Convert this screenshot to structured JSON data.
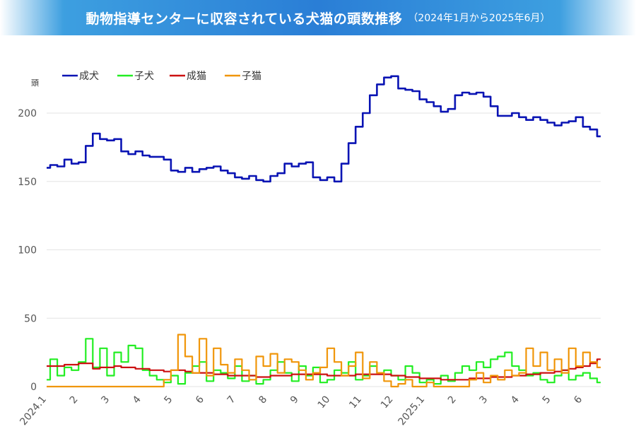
{
  "title": "動物指導センターに収容されている犬猫の頭数推移",
  "subtitle": "（2024年1月から2025年6月）",
  "chart_data": {
    "type": "line",
    "ylabel": "頭",
    "ylim": [
      0,
      230
    ],
    "yticks": [
      0,
      50,
      100,
      150,
      200
    ],
    "grid": true,
    "legend": "top-left",
    "months": [
      "2024.1",
      "2",
      "3",
      "4",
      "5",
      "6",
      "7",
      "8",
      "9",
      "10",
      "11",
      "12",
      "2025.1",
      "2",
      "3",
      "4",
      "5",
      "6"
    ],
    "series": [
      {
        "name": "成犬",
        "color": "#0a14b4",
        "values": [
          160,
          162,
          161,
          166,
          163,
          164,
          176,
          185,
          181,
          180,
          181,
          172,
          170,
          172,
          169,
          168,
          168,
          166,
          158,
          157,
          160,
          157,
          159,
          160,
          161,
          158,
          156,
          153,
          152,
          154,
          151,
          150,
          154,
          156,
          163,
          161,
          163,
          164,
          153,
          151,
          153,
          150,
          163,
          178,
          190,
          200,
          213,
          221,
          226,
          227,
          218,
          217,
          216,
          210,
          208,
          205,
          201,
          203,
          213,
          215,
          214,
          215,
          212,
          205,
          198,
          198,
          200,
          197,
          195,
          197,
          195,
          193,
          191,
          193,
          194,
          197,
          190,
          188,
          183
        ]
      },
      {
        "name": "子犬",
        "color": "#22ee22",
        "values": [
          5,
          20,
          8,
          14,
          12,
          18,
          35,
          14,
          28,
          8,
          25,
          18,
          30,
          28,
          12,
          8,
          5,
          3,
          8,
          2,
          10,
          15,
          18,
          4,
          12,
          10,
          6,
          15,
          4,
          8,
          2,
          5,
          12,
          18,
          10,
          4,
          15,
          8,
          14,
          3,
          5,
          12,
          10,
          18,
          5,
          8,
          15,
          10,
          12,
          8,
          5,
          15,
          10,
          3,
          5,
          2,
          8,
          4,
          10,
          15,
          12,
          18,
          14,
          20,
          22,
          25,
          15,
          12,
          8,
          10,
          5,
          3,
          8,
          12,
          5,
          8,
          10,
          6,
          3
        ]
      },
      {
        "name": "成猫",
        "color": "#cc1111",
        "values": [
          15,
          15,
          15,
          16,
          16,
          17,
          17,
          13,
          14,
          14,
          15,
          14,
          14,
          13,
          13,
          12,
          12,
          11,
          12,
          12,
          11,
          10,
          10,
          10,
          9,
          9,
          8,
          8,
          8,
          8,
          7,
          7,
          8,
          8,
          8,
          9,
          9,
          9,
          9,
          9,
          8,
          8,
          8,
          8,
          9,
          9,
          9,
          9,
          9,
          8,
          8,
          7,
          7,
          6,
          6,
          6,
          5,
          5,
          5,
          5,
          6,
          6,
          6,
          7,
          7,
          7,
          8,
          8,
          9,
          9,
          10,
          10,
          11,
          12,
          13,
          14,
          15,
          17,
          20
        ]
      },
      {
        "name": "子猫",
        "color": "#f0960a",
        "values": [
          0,
          0,
          0,
          0,
          0,
          0,
          0,
          0,
          0,
          0,
          0,
          0,
          0,
          0,
          0,
          0,
          0,
          5,
          12,
          38,
          22,
          10,
          35,
          8,
          28,
          16,
          10,
          20,
          12,
          5,
          22,
          15,
          24,
          10,
          20,
          18,
          12,
          5,
          10,
          14,
          28,
          18,
          8,
          15,
          25,
          6,
          18,
          10,
          4,
          0,
          2,
          5,
          0,
          0,
          3,
          0,
          0,
          0,
          0,
          0,
          5,
          10,
          3,
          8,
          5,
          12,
          8,
          10,
          28,
          15,
          25,
          12,
          20,
          10,
          28,
          15,
          25,
          18,
          14
        ]
      }
    ]
  }
}
